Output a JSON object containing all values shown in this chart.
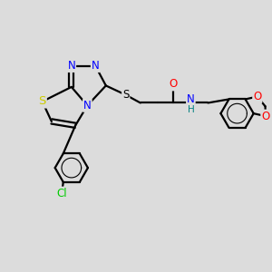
{
  "bg_color": "#dcdcdc",
  "bond_color": "#000000",
  "bond_width": 1.6,
  "atom_colors": {
    "S": "#cccc00",
    "N": "#0000ff",
    "O": "#ff0000",
    "Cl": "#00cc00",
    "S_link": "#000000",
    "NH": "#008080",
    "H": "#008080"
  },
  "font_size": 8.5
}
